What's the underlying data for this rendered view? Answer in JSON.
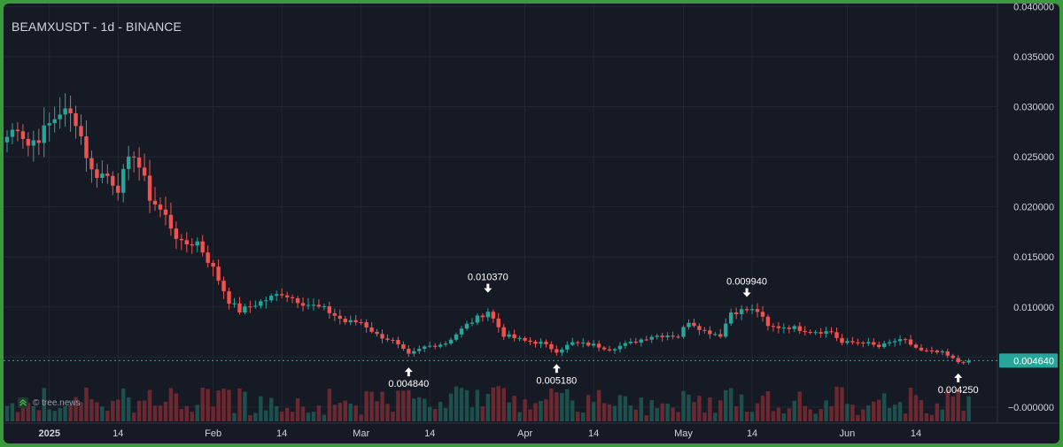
{
  "title": "BEAMXUSDT - 1d - BINANCE",
  "watermark": "© tree.news",
  "colors": {
    "up": "#26a69a",
    "down": "#ef5350",
    "background": "#161a25",
    "grid": "#232733",
    "text": "#d1d4dc",
    "last_price_bg": "#26a69a"
  },
  "chart_data": {
    "type": "candlestick",
    "symbol": "BEAMXUSDT",
    "interval": "1d",
    "exchange": "BINANCE",
    "x_range": [
      "2024-12-24",
      "2025-06-29"
    ],
    "ylim": [
      -0.0016,
      0.0403
    ],
    "y_ticks": [
      0.04,
      0.035,
      0.03,
      0.025,
      0.02,
      0.015,
      0.01,
      0.005,
      0.0
    ],
    "y_tick_labels": [
      "0.040000",
      "0.035000",
      "0.030000",
      "0.025000",
      "0.020000",
      "0.015000",
      "0.010000",
      "0.005000",
      "−0.000000"
    ],
    "x_ticks": [
      {
        "date": "2025-01-01",
        "label": "2025",
        "bold": true
      },
      {
        "date": "2025-01-14",
        "label": "14"
      },
      {
        "date": "2025-02-01",
        "label": "Feb"
      },
      {
        "date": "2025-02-14",
        "label": "14"
      },
      {
        "date": "2025-03-01",
        "label": "Mar"
      },
      {
        "date": "2025-03-14",
        "label": "14"
      },
      {
        "date": "2025-04-01",
        "label": "Apr"
      },
      {
        "date": "2025-04-14",
        "label": "14"
      },
      {
        "date": "2025-05-01",
        "label": "May"
      },
      {
        "date": "2025-05-14",
        "label": "14"
      },
      {
        "date": "2025-06-01",
        "label": "Jun"
      },
      {
        "date": "2025-06-14",
        "label": "14"
      }
    ],
    "last_price": 0.00464,
    "last_price_label": "0.004640",
    "annotations": [
      {
        "date": "2025-03-10",
        "value": 0.00484,
        "label": "0.004840",
        "position": "below"
      },
      {
        "date": "2025-03-25",
        "value": 0.01037,
        "label": "0.010370",
        "position": "above"
      },
      {
        "date": "2025-04-07",
        "value": 0.00518,
        "label": "0.005180",
        "position": "below"
      },
      {
        "date": "2025-05-13",
        "value": 0.00994,
        "label": "0.009940",
        "position": "above"
      },
      {
        "date": "2025-06-22",
        "value": 0.00425,
        "label": "0.004250",
        "position": "below"
      }
    ],
    "anchors": [
      [
        "2024-12-24",
        0.027
      ],
      [
        "2024-12-26",
        0.0282
      ],
      [
        "2024-12-28",
        0.0262
      ],
      [
        "2024-12-31",
        0.0275
      ],
      [
        "2025-01-03",
        0.0296
      ],
      [
        "2025-01-06",
        0.0288
      ],
      [
        "2025-01-09",
        0.0235
      ],
      [
        "2025-01-12",
        0.0231
      ],
      [
        "2025-01-14",
        0.022
      ],
      [
        "2025-01-17",
        0.0255
      ],
      [
        "2025-01-20",
        0.021
      ],
      [
        "2025-01-23",
        0.019
      ],
      [
        "2025-01-26",
        0.0162
      ],
      [
        "2025-01-29",
        0.0165
      ],
      [
        "2025-02-01",
        0.0138
      ],
      [
        "2025-02-04",
        0.0106
      ],
      [
        "2025-02-06",
        0.0096
      ],
      [
        "2025-02-10",
        0.0105
      ],
      [
        "2025-02-14",
        0.0114
      ],
      [
        "2025-02-18",
        0.0104
      ],
      [
        "2025-02-22",
        0.0098
      ],
      [
        "2025-02-26",
        0.0085
      ],
      [
        "2025-03-01",
        0.0085
      ],
      [
        "2025-03-04",
        0.0072
      ],
      [
        "2025-03-07",
        0.0066
      ],
      [
        "2025-03-10",
        0.0052
      ],
      [
        "2025-03-13",
        0.006
      ],
      [
        "2025-03-17",
        0.0064
      ],
      [
        "2025-03-21",
        0.0082
      ],
      [
        "2025-03-25",
        0.0096
      ],
      [
        "2025-03-28",
        0.0072
      ],
      [
        "2025-04-01",
        0.0066
      ],
      [
        "2025-04-04",
        0.0064
      ],
      [
        "2025-04-07",
        0.0056
      ],
      [
        "2025-04-10",
        0.0064
      ],
      [
        "2025-04-14",
        0.0062
      ],
      [
        "2025-04-17",
        0.0058
      ],
      [
        "2025-04-21",
        0.0064
      ],
      [
        "2025-04-25",
        0.0071
      ],
      [
        "2025-04-28",
        0.0072
      ],
      [
        "2025-04-30",
        0.0071
      ],
      [
        "2025-05-02",
        0.0086
      ],
      [
        "2025-05-05",
        0.0076
      ],
      [
        "2025-05-08",
        0.0072
      ],
      [
        "2025-05-10",
        0.0095
      ],
      [
        "2025-05-13",
        0.0097
      ],
      [
        "2025-05-15",
        0.0096
      ],
      [
        "2025-05-17",
        0.008
      ],
      [
        "2025-05-21",
        0.008
      ],
      [
        "2025-05-25",
        0.0076
      ],
      [
        "2025-05-29",
        0.0075
      ],
      [
        "2025-05-31",
        0.0064
      ],
      [
        "2025-06-04",
        0.0065
      ],
      [
        "2025-06-07",
        0.006
      ],
      [
        "2025-06-10",
        0.0066
      ],
      [
        "2025-06-12",
        0.0066
      ],
      [
        "2025-06-15",
        0.0056
      ],
      [
        "2025-06-19",
        0.0054
      ],
      [
        "2025-06-22",
        0.0045
      ],
      [
        "2025-06-24",
        0.00464
      ]
    ]
  }
}
